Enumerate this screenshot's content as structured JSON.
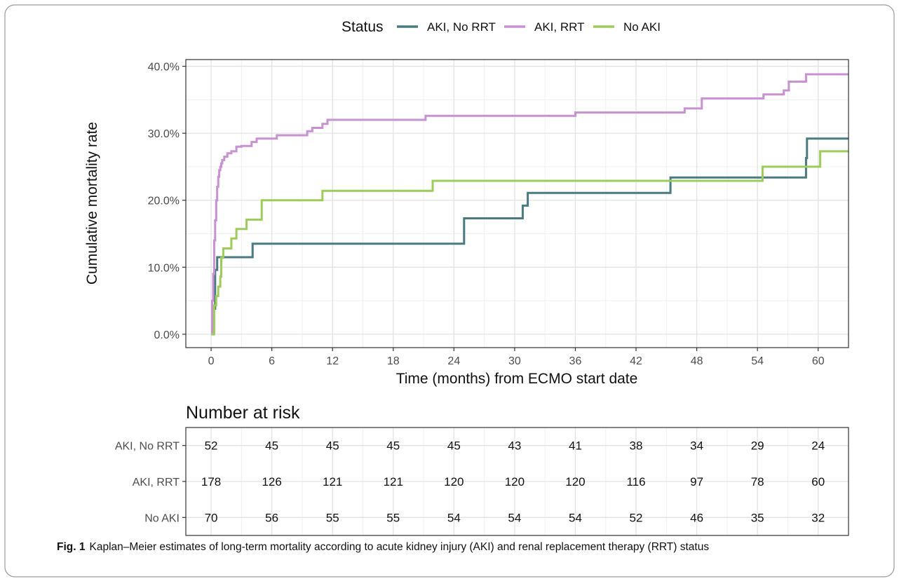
{
  "chart_data": [
    {
      "type": "line",
      "subtype": "step",
      "xlabel": "Time (months) from ECMO start date",
      "ylabel": "Cumulative mortality rate",
      "xlim": [
        -2.5,
        63
      ],
      "ylim": [
        -0.02,
        0.41
      ],
      "x_ticks": [
        0,
        6,
        12,
        18,
        24,
        30,
        36,
        42,
        48,
        54,
        60
      ],
      "y_ticks": [
        0.0,
        0.1,
        0.2,
        0.3,
        0.4
      ],
      "y_tick_labels": [
        "0.0%",
        "10.0%",
        "20.0%",
        "30.0%",
        "40.0%"
      ],
      "grid": true,
      "legend": {
        "title": "Status",
        "position": "top"
      },
      "series": [
        {
          "name": "AKI, No RRT",
          "color": "#4a7b80",
          "x": [
            0,
            0.2,
            0.4,
            0.6,
            4.1,
            25.0,
            30.8,
            31.3,
            45.4,
            58.8,
            58.9,
            63
          ],
          "y": [
            0,
            0.038,
            0.096,
            0.115,
            0.135,
            0.173,
            0.192,
            0.211,
            0.234,
            0.263,
            0.292,
            0.292
          ]
        },
        {
          "name": "AKI, RRT",
          "color": "#c891d1",
          "x": [
            0,
            0.1,
            0.2,
            0.3,
            0.4,
            0.5,
            0.6,
            0.7,
            0.8,
            0.9,
            1.0,
            1.1,
            1.3,
            1.6,
            2.0,
            2.5,
            3.0,
            4.0,
            4.5,
            6.0,
            6.5,
            9.5,
            10.0,
            11.0,
            11.5,
            21.2,
            36.0,
            46.8,
            48.5,
            54.6,
            56.6,
            57.1,
            58.8,
            63
          ],
          "y": [
            0,
            0.05,
            0.09,
            0.14,
            0.17,
            0.2,
            0.22,
            0.235,
            0.245,
            0.25,
            0.255,
            0.26,
            0.265,
            0.27,
            0.273,
            0.28,
            0.281,
            0.287,
            0.292,
            0.292,
            0.297,
            0.303,
            0.308,
            0.314,
            0.32,
            0.326,
            0.331,
            0.337,
            0.352,
            0.358,
            0.364,
            0.377,
            0.388,
            0.388
          ]
        },
        {
          "name": "No AKI",
          "color": "#9dcc5a",
          "x": [
            0,
            0.3,
            0.5,
            0.7,
            0.9,
            1.0,
            1.2,
            2.0,
            2.5,
            3.5,
            5.0,
            11.0,
            21.9,
            54.5,
            60.2,
            63
          ],
          "y": [
            0,
            0.043,
            0.057,
            0.071,
            0.086,
            0.114,
            0.128,
            0.143,
            0.157,
            0.171,
            0.2,
            0.214,
            0.229,
            0.25,
            0.273,
            0.273
          ]
        }
      ]
    },
    {
      "type": "table",
      "title": "Number at risk",
      "x_ticks": [
        0,
        6,
        12,
        18,
        24,
        30,
        36,
        42,
        48,
        54,
        60
      ],
      "rows": [
        {
          "label": "AKI, No RRT",
          "values": [
            52,
            45,
            45,
            45,
            45,
            43,
            41,
            38,
            34,
            29,
            24
          ]
        },
        {
          "label": "AKI, RRT",
          "values": [
            178,
            126,
            121,
            121,
            120,
            120,
            120,
            116,
            97,
            78,
            60
          ]
        },
        {
          "label": "No AKI",
          "values": [
            70,
            56,
            55,
            55,
            54,
            54,
            54,
            52,
            46,
            35,
            32
          ]
        }
      ]
    }
  ],
  "caption": {
    "label": "Fig. 1",
    "text": "Kaplan–Meier estimates of long-term mortality according to acute kidney injury (AKI) and renal replacement therapy (RRT) status"
  }
}
